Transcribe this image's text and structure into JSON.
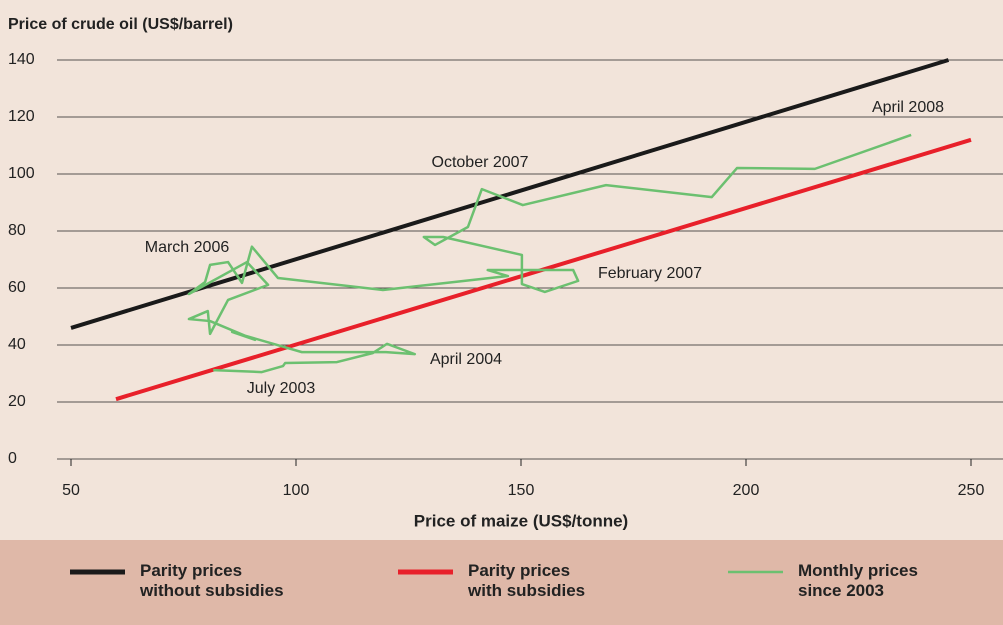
{
  "chart_data": {
    "type": "line",
    "ylabel": "Price of crude oil (US$/barrel)",
    "xlabel": "Price of maize (US$/tonne)",
    "xlim": [
      50,
      250
    ],
    "xticks": [
      50,
      100,
      150,
      200,
      250
    ],
    "ylim": [
      0,
      140
    ],
    "yticks": [
      0,
      20,
      40,
      60,
      80,
      100,
      120,
      140
    ],
    "grid": true,
    "series": [
      {
        "name": "Parity prices without subsidies",
        "color": "#1a1a1a",
        "x": [
          50,
          245
        ],
        "values": [
          46,
          140
        ]
      },
      {
        "name": "Parity prices with subsidies",
        "color": "#e8202a",
        "x": [
          60,
          250
        ],
        "values": [
          21,
          112
        ]
      },
      {
        "name": "Monthly prices since 2003",
        "color": "#6cc070",
        "x": [
          81.6,
          92.4,
          97.1,
          97.6,
          109.1,
          117.1,
          120.2,
          126.4,
          120,
          101.3,
          85.8,
          90.9,
          80.9,
          76.2,
          80.4,
          80.9,
          84.9,
          93.8,
          89.1,
          76.2,
          79.8,
          80.9,
          84.9,
          88,
          90.2,
          96,
          119.3,
          147.1,
          142.6,
          161.6,
          162.7,
          155.3,
          150.2,
          150.2,
          132.7,
          128.4,
          130.9,
          138.2,
          141.3,
          150.4,
          168.9,
          192.4,
          198,
          215.3,
          236.7
        ],
        "values": [
          31.2,
          30.5,
          32.6,
          33.7,
          34.0,
          37.2,
          40.4,
          36.8,
          37.5,
          37.5,
          44.6,
          41.8,
          48.4,
          49.1,
          51.9,
          43.9,
          55.8,
          61.1,
          69.1,
          57.9,
          62.1,
          68.1,
          69.1,
          61.8,
          74.5,
          63.5,
          59.3,
          64.2,
          66.3,
          66.3,
          62.5,
          58.6,
          61.4,
          71.6,
          77.9,
          77.9,
          75.1,
          81.4,
          94.7,
          89.1,
          96.1,
          91.9,
          102.1,
          101.8,
          113.7
        ]
      }
    ],
    "annotations": [
      "October 2007",
      "April 2008",
      "March 2006",
      "February 2007",
      "April 2004",
      "July 2003"
    ],
    "legend": "bottom"
  }
}
